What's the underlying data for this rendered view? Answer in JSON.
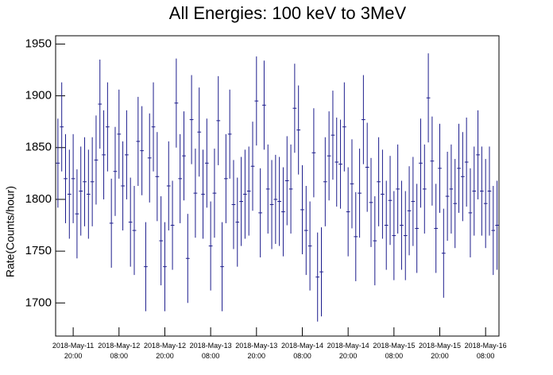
{
  "chart_data": {
    "type": "errorbar",
    "title": "All Energies:  100 keV to 3MeV",
    "ylabel": "Rate(Counts/hour)",
    "x": [
      16,
      17,
      18,
      19,
      20,
      21,
      22,
      23,
      24,
      25,
      26,
      27,
      28,
      29,
      30,
      31,
      32,
      33,
      34,
      35,
      36,
      37,
      38,
      39,
      40,
      41,
      42,
      43,
      44,
      45,
      46,
      47,
      48,
      49,
      50,
      51,
      52,
      53,
      54,
      55,
      56,
      57,
      58,
      59,
      60,
      61,
      62,
      63,
      64,
      65,
      66,
      67,
      68,
      69,
      70,
      71,
      72,
      73,
      74,
      75,
      76,
      77,
      78,
      79,
      80,
      81,
      82,
      83,
      84,
      85,
      86,
      87,
      88,
      89,
      90,
      91,
      92,
      93,
      94,
      95,
      96,
      97,
      98,
      99,
      100,
      101,
      102,
      103,
      104,
      105,
      106,
      107,
      108,
      109,
      110,
      111,
      112,
      113,
      114,
      115,
      116,
      117,
      118,
      119,
      120,
      121,
      122,
      123,
      124,
      125,
      126,
      127,
      128,
      129,
      130,
      131
    ],
    "series": [
      {
        "color": "#1c1c8c",
        "error": 43,
        "values": [
          1835,
          1870,
          1820,
          1805,
          1820,
          1786,
          1808,
          1817,
          1805,
          1817,
          1838,
          1892,
          1843,
          1870,
          1777,
          1827,
          1863,
          1813,
          1843,
          1778,
          1770,
          1856,
          1847,
          1735,
          1840,
          1870,
          1822,
          1760,
          1735,
          1813,
          1775,
          1893,
          1820,
          1842,
          1743,
          1877,
          1806,
          1865,
          1805,
          1835,
          1755,
          1806,
          1876,
          1735,
          1820,
          1863,
          1795,
          1778,
          1798,
          1805,
          1808,
          1832,
          1895,
          1787,
          1891,
          1810,
          1795,
          1800,
          1798,
          1788,
          1818,
          1810,
          1888,
          1867,
          1790,
          1770,
          1755,
          1845,
          1725,
          1730,
          1817,
          1842,
          1862,
          1836,
          1834,
          1870,
          1788,
          1815,
          1764,
          1806,
          1877,
          1831,
          1797,
          1760,
          1817,
          1805,
          1775,
          1799,
          1765,
          1810,
          1775,
          1765,
          1789,
          1798,
          1772,
          1835,
          1810,
          1898,
          1837,
          1772,
          1830,
          1748,
          1803,
          1810,
          1796,
          1830,
          1822,
          1836,
          1787,
          1808,
          1843,
          1808,
          1796,
          1808,
          1770,
          1775
        ]
      }
    ],
    "xlim": [
      15.4,
      131.5
    ],
    "xticks": [
      {
        "value": 20,
        "label": "2018-May-11\n20:00"
      },
      {
        "value": 32,
        "label": "2018-May-12\n08:00"
      },
      {
        "value": 44,
        "label": "2018-May-12\n20:00"
      },
      {
        "value": 56,
        "label": "2018-May-13\n08:00"
      },
      {
        "value": 68,
        "label": "2018-May-13\n20:00"
      },
      {
        "value": 80,
        "label": "2018-May-14\n08:00"
      },
      {
        "value": 92,
        "label": "2018-May-14\n20:00"
      },
      {
        "value": 104,
        "label": "2018-May-15\n08:00"
      },
      {
        "value": 116,
        "label": "2018-May-15\n20:00"
      },
      {
        "value": 128,
        "label": "2018-May-16\n08:00"
      }
    ],
    "ylim": [
      1668,
      1958
    ],
    "yticks": [
      1700,
      1750,
      1800,
      1850,
      1900,
      1950
    ]
  }
}
